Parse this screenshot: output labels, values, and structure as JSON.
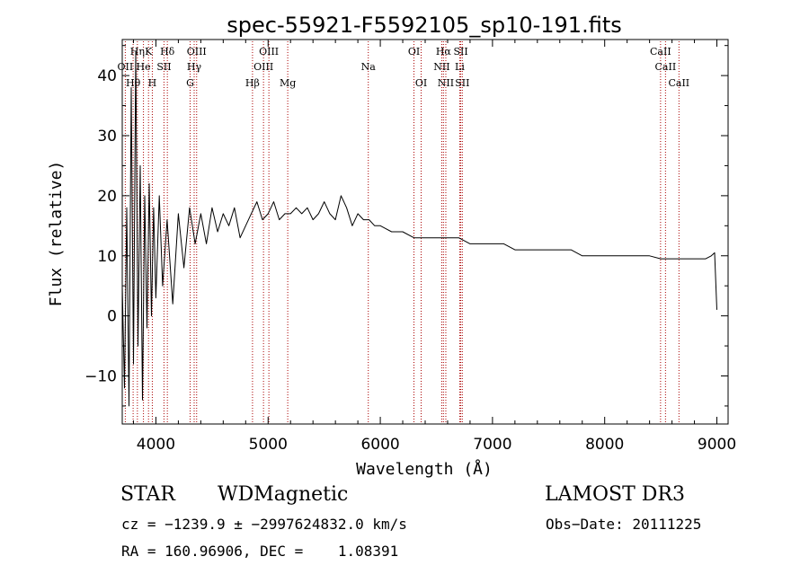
{
  "chart_data": {
    "type": "line",
    "title": "spec-55921-F5592105_sp10-191.fits",
    "xlabel": "Wavelength (Å)",
    "ylabel": "Flux (relative)",
    "xlim": [
      3700,
      9100
    ],
    "ylim": [
      -18,
      46
    ],
    "xticks": [
      4000,
      5000,
      6000,
      7000,
      8000,
      9000
    ],
    "yticks": [
      -10,
      0,
      10,
      20,
      30,
      40
    ],
    "xtick_labels": [
      "4000",
      "5000",
      "6000",
      "7000",
      "8000",
      "9000"
    ],
    "ytick_labels": [
      "−10",
      "0",
      "10",
      "20",
      "30",
      "40"
    ],
    "line_color": "#000000",
    "marker_color": "#aa0000",
    "series": [
      {
        "name": "flux",
        "x": [
          3700,
          3720,
          3740,
          3760,
          3780,
          3800,
          3820,
          3840,
          3860,
          3880,
          3900,
          3920,
          3940,
          3960,
          3980,
          4000,
          4030,
          4060,
          4100,
          4150,
          4200,
          4250,
          4300,
          4350,
          4400,
          4450,
          4500,
          4550,
          4600,
          4650,
          4700,
          4750,
          4800,
          4850,
          4900,
          4950,
          5000,
          5050,
          5100,
          5150,
          5200,
          5250,
          5300,
          5350,
          5400,
          5450,
          5500,
          5550,
          5600,
          5650,
          5700,
          5750,
          5800,
          5850,
          5900,
          5950,
          6000,
          6100,
          6200,
          6300,
          6400,
          6500,
          6600,
          6700,
          6800,
          6900,
          7000,
          7100,
          7200,
          7300,
          7400,
          7500,
          7600,
          7700,
          7800,
          7900,
          8000,
          8100,
          8200,
          8300,
          8400,
          8500,
          8600,
          8700,
          8800,
          8900,
          8950,
          8980,
          9000
        ],
        "y": [
          5,
          -12,
          18,
          -15,
          38,
          -8,
          44,
          -5,
          25,
          -14,
          20,
          -2,
          22,
          0,
          18,
          3,
          20,
          5,
          16,
          2,
          17,
          8,
          18,
          12,
          17,
          12,
          18,
          14,
          17,
          15,
          18,
          13,
          15,
          17,
          19,
          16,
          17,
          19,
          16,
          17,
          17,
          18,
          17,
          18,
          16,
          17,
          19,
          17,
          16,
          20,
          18,
          15,
          17,
          16,
          16,
          15,
          15,
          14,
          14,
          13,
          13,
          13,
          13,
          13,
          12,
          12,
          12,
          12,
          11,
          11,
          11,
          11,
          11,
          11,
          10,
          10,
          10,
          10,
          10,
          10,
          10,
          9.5,
          9.5,
          9.5,
          9.5,
          9.5,
          10,
          10.5,
          1
        ]
      }
    ],
    "lines": [
      {
        "label": "Hη",
        "x": 3835,
        "row": 0
      },
      {
        "label": "OII",
        "x": 3727,
        "row": 1
      },
      {
        "label": "Hθ",
        "x": 3797,
        "row": 2
      },
      {
        "label": "K",
        "x": 3934,
        "row": 0
      },
      {
        "label": "He",
        "x": 3889,
        "row": 1
      },
      {
        "label": "H",
        "x": 3968,
        "row": 2
      },
      {
        "label": "SII",
        "x": 4072,
        "row": 1
      },
      {
        "label": "Hδ",
        "x": 4102,
        "row": 0
      },
      {
        "label": "OIII",
        "x": 4363,
        "row": 0
      },
      {
        "label": "Hγ",
        "x": 4341,
        "row": 1
      },
      {
        "label": "G",
        "x": 4305,
        "row": 2
      },
      {
        "label": "Hβ",
        "x": 4861,
        "row": 2
      },
      {
        "label": "OIII",
        "x": 4959,
        "row": 1
      },
      {
        "label": "OIII",
        "x": 5007,
        "row": 0
      },
      {
        "label": "Mg",
        "x": 5175,
        "row": 2
      },
      {
        "label": "Na",
        "x": 5893,
        "row": 1
      },
      {
        "label": "OI",
        "x": 6300,
        "row": 0
      },
      {
        "label": "OI",
        "x": 6364,
        "row": 2
      },
      {
        "label": "Hα",
        "x": 6563,
        "row": 0
      },
      {
        "label": "NII",
        "x": 6548,
        "row": 1
      },
      {
        "label": "NII",
        "x": 6584,
        "row": 2
      },
      {
        "label": "SII",
        "x": 6717,
        "row": 0
      },
      {
        "label": "Li",
        "x": 6708,
        "row": 1
      },
      {
        "label": "SII",
        "x": 6731,
        "row": 2
      },
      {
        "label": "CaII",
        "x": 8498,
        "row": 0
      },
      {
        "label": "CaII",
        "x": 8542,
        "row": 1
      },
      {
        "label": "CaII",
        "x": 8662,
        "row": 2
      }
    ]
  },
  "info": {
    "class": "STAR",
    "subclass": "WDMagnetic",
    "survey": "LAMOST DR3",
    "cz": "cz = −1239.9 ± −2997624832.0 km/s",
    "obs_date": "Obs−Date: 20111225",
    "radec": "RA = 160.96906, DEC =    1.08391"
  }
}
